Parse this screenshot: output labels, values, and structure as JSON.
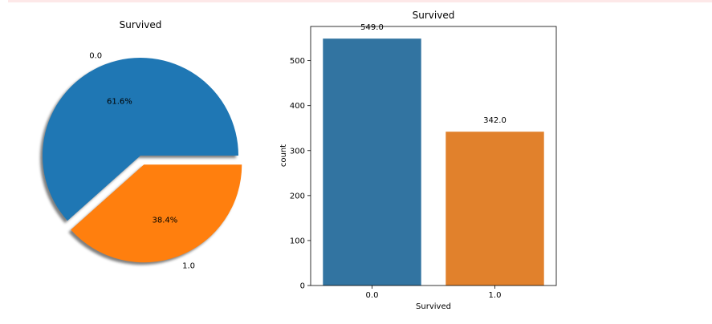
{
  "chart_data": [
    {
      "type": "pie",
      "title": "Survived",
      "labels": [
        "0.0",
        "1.0"
      ],
      "values": [
        61.6,
        38.4
      ],
      "value_labels": [
        "61.6%",
        "38.4%"
      ],
      "explode": [
        0,
        0.1
      ],
      "shadow": true,
      "colors": [
        "#1f77b4",
        "#ff7f0e"
      ]
    },
    {
      "type": "bar",
      "title": "Survived",
      "categories": [
        "0.0",
        "1.0"
      ],
      "values": [
        549,
        342
      ],
      "value_labels": [
        "549.0",
        "342.0"
      ],
      "xlabel": "Survived",
      "ylabel": "count",
      "ylim": [
        0,
        576
      ],
      "yticks": [
        0,
        100,
        200,
        300,
        400,
        500
      ],
      "colors": [
        "#3274a1",
        "#e1812c"
      ],
      "grid": false
    }
  ]
}
